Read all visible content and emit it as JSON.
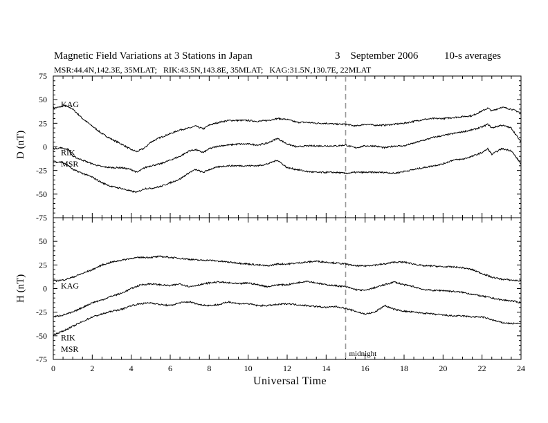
{
  "header": {
    "title": "Magnetic Field Variations at 3 Stations in Japan",
    "date": "3    September 2006",
    "averaging": "10-s averages",
    "subtitle": "MSR:44.4N,142.3E, 35MLAT;   RIK:43.5N,143.8E, 35MLAT;   KAG:31.5N,130.7E, 22MLAT"
  },
  "annotation": {
    "midnight_label": "midnight",
    "midnight_ut": 15
  },
  "chart_data": [
    {
      "type": "line",
      "panel": "D",
      "ylabel": "D (nT)",
      "xlabel": "Universal Time",
      "xlim": [
        0,
        24
      ],
      "ylim": [
        -75,
        75
      ],
      "xticks": [
        0,
        2,
        4,
        6,
        8,
        10,
        12,
        14,
        16,
        18,
        20,
        22,
        24
      ],
      "yticks": [
        -75,
        -50,
        -25,
        0,
        25,
        50,
        75
      ],
      "series": [
        {
          "name": "KAG",
          "label_anchor": [
            0.25,
            45
          ],
          "x": [
            0,
            0.3,
            0.6,
            1.0,
            1.5,
            2.0,
            2.5,
            3.0,
            3.5,
            4.0,
            4.3,
            4.7,
            5.0,
            5.5,
            6.0,
            6.5,
            7.0,
            7.3,
            7.7,
            8.0,
            8.5,
            9.0,
            9.5,
            10.0,
            10.5,
            11.0,
            11.5,
            12.0,
            12.5,
            13.0,
            13.5,
            14.0,
            14.5,
            15.0,
            15.5,
            16.0,
            16.5,
            17.0,
            17.5,
            18.0,
            18.5,
            19.0,
            19.5,
            20.0,
            20.5,
            21.0,
            21.5,
            22.0,
            22.3,
            22.5,
            23.0,
            23.5,
            24.0
          ],
          "y": [
            41,
            42,
            44,
            40,
            30,
            22,
            14,
            8,
            3,
            -3,
            -5,
            -1,
            5,
            10,
            14,
            18,
            20,
            22,
            19,
            23,
            26,
            28,
            28,
            28,
            27,
            28,
            30,
            29,
            26,
            26,
            25,
            25,
            24,
            24,
            22,
            24,
            23,
            23,
            24,
            25,
            27,
            29,
            30,
            30,
            31,
            32,
            33,
            38,
            41,
            38,
            42,
            40,
            36
          ]
        },
        {
          "name": "RIK",
          "label_anchor": [
            0.25,
            -6
          ],
          "x": [
            0,
            0.4,
            0.8,
            1.0,
            1.5,
            2.0,
            2.5,
            3.0,
            3.5,
            4.0,
            4.3,
            4.7,
            5.0,
            5.5,
            6.0,
            6.5,
            7.0,
            7.3,
            7.7,
            8.0,
            8.5,
            9.0,
            9.5,
            10.0,
            10.5,
            11.0,
            11.5,
            12.0,
            12.5,
            13.0,
            13.5,
            14.0,
            14.5,
            15.0,
            15.5,
            16.0,
            16.5,
            17.0,
            17.5,
            18.0,
            18.5,
            19.0,
            19.5,
            20.0,
            20.5,
            21.0,
            21.5,
            22.0,
            22.3,
            22.5,
            23.0,
            23.5,
            24.0
          ],
          "y": [
            -2,
            -1,
            -3,
            -10,
            -14,
            -18,
            -21,
            -22,
            -22,
            -24,
            -27,
            -22,
            -20,
            -18,
            -14,
            -10,
            -4,
            -3,
            -6,
            -2,
            1,
            2,
            3,
            3,
            2,
            4,
            9,
            3,
            0,
            1,
            1,
            1,
            1,
            2,
            -1,
            1,
            1,
            -1,
            1,
            1,
            4,
            7,
            10,
            12,
            14,
            16,
            18,
            21,
            24,
            20,
            23,
            20,
            5
          ]
        },
        {
          "name": "MSR",
          "label_anchor": [
            0.25,
            -18
          ],
          "x": [
            0,
            0.4,
            0.8,
            1.0,
            1.5,
            2.0,
            2.5,
            3.0,
            3.5,
            4.0,
            4.3,
            4.7,
            5.0,
            5.5,
            6.0,
            6.5,
            7.0,
            7.3,
            7.7,
            8.0,
            8.5,
            9.0,
            9.5,
            10.0,
            10.5,
            11.0,
            11.5,
            12.0,
            12.5,
            13.0,
            13.5,
            14.0,
            14.5,
            15.0,
            15.5,
            16.0,
            16.5,
            17.0,
            17.5,
            18.0,
            18.5,
            19.0,
            19.5,
            20.0,
            20.5,
            21.0,
            21.5,
            22.0,
            22.3,
            22.5,
            23.0,
            23.5,
            24.0
          ],
          "y": [
            -16,
            -16,
            -20,
            -24,
            -28,
            -32,
            -38,
            -42,
            -44,
            -47,
            -48,
            -44,
            -44,
            -42,
            -38,
            -34,
            -27,
            -24,
            -27,
            -24,
            -21,
            -20,
            -20,
            -20,
            -20,
            -18,
            -14,
            -22,
            -24,
            -26,
            -27,
            -27,
            -27,
            -28,
            -27,
            -27,
            -27,
            -27,
            -28,
            -26,
            -24,
            -22,
            -20,
            -18,
            -14,
            -13,
            -10,
            -6,
            -2,
            -8,
            -2,
            -4,
            -18
          ]
        }
      ]
    },
    {
      "type": "line",
      "panel": "H",
      "ylabel": "H (nT)",
      "xlabel": "Universal Time",
      "xlim": [
        0,
        24
      ],
      "ylim": [
        -75,
        75
      ],
      "xticks": [
        0,
        2,
        4,
        6,
        8,
        10,
        12,
        14,
        16,
        18,
        20,
        22,
        24
      ],
      "yticks": [
        -75,
        -50,
        -25,
        0,
        25,
        50,
        75
      ],
      "series": [
        {
          "name": "KAG",
          "label_anchor": [
            0.25,
            3
          ],
          "x": [
            0,
            0.5,
            1.0,
            1.5,
            2.0,
            2.5,
            3.0,
            3.5,
            4.0,
            4.5,
            5.0,
            5.5,
            6.0,
            6.5,
            7.0,
            7.5,
            8.0,
            8.5,
            9.0,
            9.5,
            10.0,
            10.5,
            11.0,
            11.5,
            12.0,
            12.5,
            13.0,
            13.5,
            14.0,
            14.5,
            15.0,
            15.5,
            16.0,
            16.5,
            17.0,
            17.5,
            18.0,
            18.5,
            19.0,
            19.5,
            20.0,
            20.5,
            21.0,
            21.5,
            22.0,
            22.5,
            23.0,
            23.5,
            24.0
          ],
          "y": [
            8,
            9,
            12,
            16,
            20,
            25,
            28,
            30,
            32,
            33,
            33,
            34,
            33,
            32,
            31,
            30,
            30,
            29,
            28,
            27,
            26,
            25,
            24,
            26,
            26,
            27,
            28,
            29,
            28,
            27,
            26,
            24,
            24,
            25,
            26,
            28,
            28,
            26,
            24,
            24,
            23,
            23,
            22,
            20,
            16,
            12,
            10,
            9,
            8
          ]
        },
        {
          "name": "RIK",
          "label_anchor": [
            0.25,
            -52
          ],
          "x": [
            0,
            0.5,
            1.0,
            1.5,
            2.0,
            2.5,
            3.0,
            3.5,
            4.0,
            4.5,
            5.0,
            5.5,
            6.0,
            6.5,
            7.0,
            7.5,
            8.0,
            8.5,
            9.0,
            9.5,
            10.0,
            10.5,
            11.0,
            11.5,
            12.0,
            12.5,
            13.0,
            13.5,
            14.0,
            14.5,
            15.0,
            15.5,
            16.0,
            16.5,
            17.0,
            17.5,
            18.0,
            18.5,
            19.0,
            19.5,
            20.0,
            20.5,
            21.0,
            21.5,
            22.0,
            22.5,
            23.0,
            23.5,
            24.0
          ],
          "y": [
            -30,
            -28,
            -25,
            -20,
            -15,
            -12,
            -8,
            -5,
            0,
            4,
            5,
            4,
            3,
            5,
            2,
            4,
            6,
            7,
            6,
            5,
            6,
            4,
            2,
            4,
            4,
            6,
            8,
            6,
            4,
            3,
            2,
            -1,
            -2,
            1,
            4,
            7,
            4,
            2,
            -1,
            -2,
            -2,
            -3,
            -4,
            -6,
            -8,
            -10,
            -12,
            -13,
            -15
          ]
        },
        {
          "name": "MSR",
          "label_anchor": [
            0.25,
            -64
          ],
          "x": [
            0,
            0.5,
            1.0,
            1.5,
            2.0,
            2.5,
            3.0,
            3.5,
            4.0,
            4.5,
            5.0,
            5.5,
            6.0,
            6.5,
            7.0,
            7.5,
            8.0,
            8.5,
            9.0,
            9.5,
            10.0,
            10.5,
            11.0,
            11.5,
            12.0,
            12.5,
            13.0,
            13.5,
            14.0,
            14.5,
            15.0,
            15.5,
            16.0,
            16.5,
            17.0,
            17.5,
            18.0,
            18.5,
            19.0,
            19.5,
            20.0,
            20.5,
            21.0,
            21.5,
            22.0,
            22.5,
            23.0,
            23.5,
            24.0
          ],
          "y": [
            -49,
            -45,
            -40,
            -35,
            -30,
            -27,
            -24,
            -22,
            -18,
            -16,
            -15,
            -17,
            -18,
            -15,
            -14,
            -17,
            -18,
            -17,
            -14,
            -16,
            -16,
            -18,
            -18,
            -17,
            -16,
            -17,
            -18,
            -19,
            -20,
            -19,
            -21,
            -24,
            -27,
            -25,
            -18,
            -22,
            -24,
            -25,
            -26,
            -27,
            -28,
            -29,
            -29,
            -30,
            -30,
            -33,
            -36,
            -37,
            -37
          ]
        }
      ]
    }
  ]
}
